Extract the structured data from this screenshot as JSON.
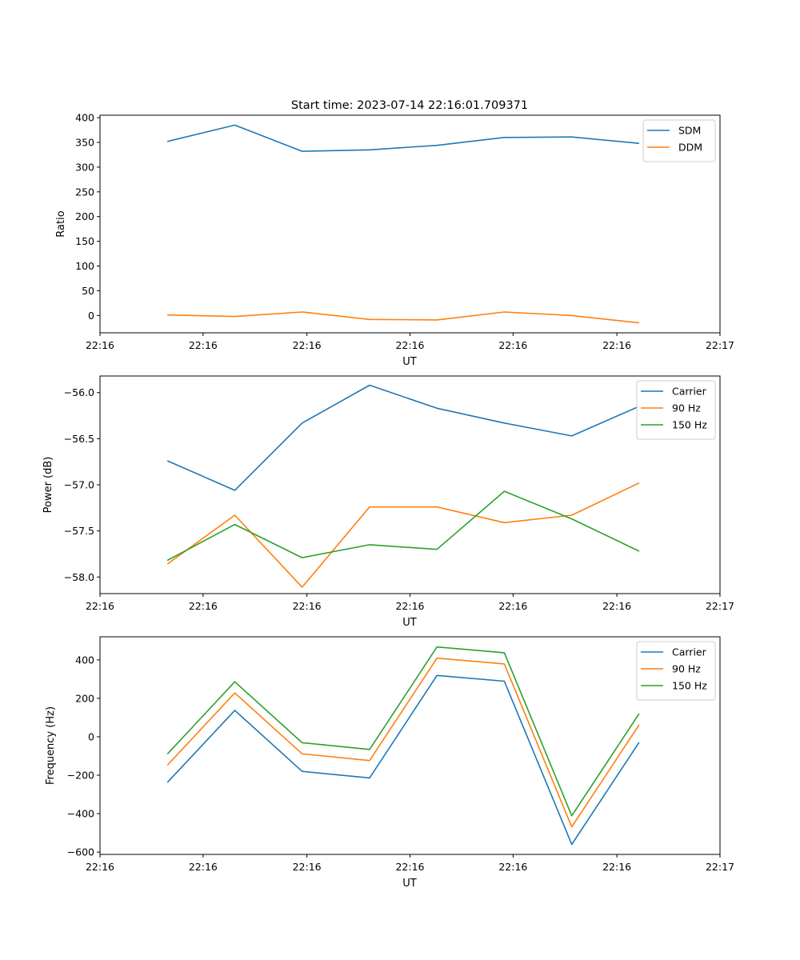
{
  "figure": {
    "title": "Start time: 2023-07-14 22:16:01.709371"
  },
  "colors": {
    "blue": "#1f77b4",
    "orange": "#ff7f0e",
    "green": "#2ca02c"
  },
  "chart_data": [
    {
      "type": "line",
      "title": "Start time: 2023-07-14 22:16:01.709371",
      "xlabel": "UT",
      "ylabel": "Ratio",
      "x": [
        1,
        2,
        3,
        4,
        5,
        6,
        7,
        8
      ],
      "xlim": [
        0,
        9.2
      ],
      "x_ticks": [
        0,
        1.53,
        3.07,
        4.6,
        6.13,
        7.67,
        9.2
      ],
      "x_tick_labels": [
        "22:16",
        "22:16",
        "22:16",
        "22:16",
        "22:16",
        "22:16",
        "22:17"
      ],
      "ylim": [
        -35,
        405
      ],
      "y_ticks": [
        0,
        50,
        100,
        150,
        200,
        250,
        300,
        350,
        400
      ],
      "y_tick_labels": [
        "0",
        "50",
        "100",
        "150",
        "200",
        "250",
        "300",
        "350",
        "400"
      ],
      "legend": "top-right",
      "series": [
        {
          "name": "SDM",
          "color": "#1f77b4",
          "values": [
            352,
            385,
            332,
            335,
            344,
            360,
            361,
            348
          ]
        },
        {
          "name": "DDM",
          "color": "#ff7f0e",
          "values": [
            1,
            -2,
            7,
            -8,
            -9,
            7,
            0,
            -15
          ]
        }
      ]
    },
    {
      "type": "line",
      "title": "",
      "xlabel": "UT",
      "ylabel": "Power (dB)",
      "x": [
        1,
        2,
        3,
        4,
        5,
        6,
        7,
        8
      ],
      "xlim": [
        0,
        9.2
      ],
      "x_ticks": [
        0,
        1.53,
        3.07,
        4.6,
        6.13,
        7.67,
        9.2
      ],
      "x_tick_labels": [
        "22:16",
        "22:16",
        "22:16",
        "22:16",
        "22:16",
        "22:16",
        "22:17"
      ],
      "ylim": [
        -58.18,
        -55.82
      ],
      "y_ticks": [
        -58.0,
        -57.5,
        -57.0,
        -56.5,
        -56.0
      ],
      "y_tick_labels": [
        "−58.0",
        "−57.5",
        "−57.0",
        "−56.5",
        "−56.0"
      ],
      "legend": "top-right",
      "series": [
        {
          "name": "Carrier",
          "color": "#1f77b4",
          "values": [
            -56.74,
            -57.06,
            -56.33,
            -55.92,
            -56.17,
            -56.33,
            -56.47,
            -56.15
          ]
        },
        {
          "name": "90 Hz",
          "color": "#ff7f0e",
          "values": [
            -57.86,
            -57.33,
            -58.11,
            -57.24,
            -57.24,
            -57.41,
            -57.33,
            -56.98
          ]
        },
        {
          "name": "150 Hz",
          "color": "#2ca02c",
          "values": [
            -57.82,
            -57.43,
            -57.79,
            -57.65,
            -57.7,
            -57.07,
            -57.37,
            -57.72
          ]
        }
      ]
    },
    {
      "type": "line",
      "title": "",
      "xlabel": "UT",
      "ylabel": "Frequency (Hz)",
      "x": [
        1,
        2,
        3,
        4,
        5,
        6,
        7,
        8
      ],
      "xlim": [
        0,
        9.2
      ],
      "x_ticks": [
        0,
        1.53,
        3.07,
        4.6,
        6.13,
        7.67,
        9.2
      ],
      "x_tick_labels": [
        "22:16",
        "22:16",
        "22:16",
        "22:16",
        "22:16",
        "22:16",
        "22:17"
      ],
      "ylim": [
        -612,
        520
      ],
      "y_ticks": [
        -600,
        -400,
        -200,
        0,
        200,
        400
      ],
      "y_tick_labels": [
        "−600",
        "−400",
        "−200",
        "0",
        "200",
        "400"
      ],
      "legend": "top-right",
      "series": [
        {
          "name": "Carrier",
          "color": "#1f77b4",
          "values": [
            -238,
            137,
            -180,
            -214,
            319,
            289,
            -560,
            -29
          ]
        },
        {
          "name": "90 Hz",
          "color": "#ff7f0e",
          "values": [
            -148,
            228,
            -89,
            -124,
            409,
            379,
            -469,
            62
          ]
        },
        {
          "name": "150 Hz",
          "color": "#2ca02c",
          "values": [
            -90,
            286,
            -31,
            -66,
            467,
            437,
            -411,
            120
          ]
        }
      ]
    }
  ]
}
